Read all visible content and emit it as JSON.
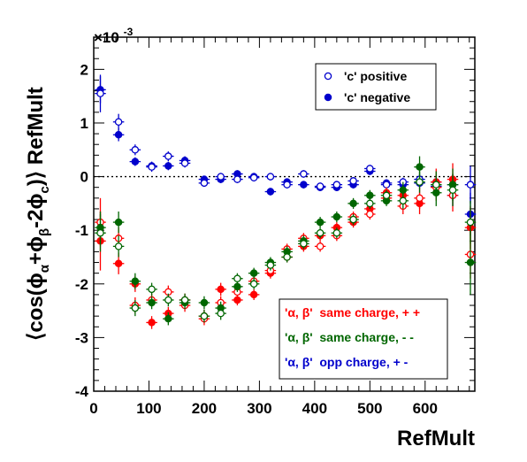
{
  "chart_data": {
    "type": "scatter",
    "xlabel": "RefMult",
    "ylabel": "⟨cos(ϕα+ϕβ-2ϕc)⟩ RefMult",
    "ylabel_parts": {
      "open": "⟨cos(ϕ",
      "sub_alpha": "α",
      "plus": "+ϕ",
      "sub_beta": "β",
      "minus": "-2ϕ",
      "sub_c": "c",
      "close": ")⟩ RefMult"
    },
    "y_multiplier": "×10",
    "y_multiplier_exp": "-3",
    "xlim": [
      0,
      690
    ],
    "ylim": [
      -4,
      2.6
    ],
    "x_ticks": [
      0,
      100,
      200,
      300,
      400,
      500,
      600
    ],
    "y_ticks": [
      -4,
      -3,
      -2,
      -1,
      0,
      1,
      2
    ],
    "reference_line": 0,
    "grid": false,
    "legends": [
      {
        "placement": "top-right",
        "entries": [
          {
            "label": "'c' positive",
            "color": "#0000cc",
            "marker": "open"
          },
          {
            "label": "'c' negative",
            "color": "#0000cc",
            "marker": "filled"
          }
        ]
      },
      {
        "placement": "bottom-right",
        "entries": [
          {
            "label": "'α, β'  same charge, + +",
            "color": "#ff0000"
          },
          {
            "label": "'α, β'  same charge, - -",
            "color": "#006600"
          },
          {
            "label": "'α, β'  opp charge, + -",
            "color": "#0000cc"
          }
        ]
      }
    ],
    "series": [
      {
        "color": "#0000cc",
        "marker": "filled",
        "xerr": 10,
        "points": [
          [
            12,
            1.62,
            0.25
          ],
          [
            45,
            0.78,
            0.12
          ],
          [
            75,
            0.28,
            0.08
          ],
          [
            105,
            0.2,
            0.08
          ],
          [
            135,
            0.2,
            0.08
          ],
          [
            165,
            0.3,
            0.08
          ],
          [
            200,
            -0.05,
            0.07
          ],
          [
            230,
            -0.05,
            0.07
          ],
          [
            260,
            0.05,
            0.07
          ],
          [
            290,
            0.0,
            0.07
          ],
          [
            320,
            -0.28,
            0.07
          ],
          [
            350,
            -0.1,
            0.07
          ],
          [
            380,
            -0.15,
            0.07
          ],
          [
            410,
            -0.2,
            0.07
          ],
          [
            440,
            -0.2,
            0.07
          ],
          [
            470,
            -0.15,
            0.07
          ],
          [
            500,
            0.1,
            0.07
          ],
          [
            530,
            -0.12,
            0.07
          ],
          [
            560,
            -0.15,
            0.08
          ],
          [
            590,
            -0.12,
            0.1
          ],
          [
            620,
            -0.1,
            0.12
          ],
          [
            650,
            -0.15,
            0.2
          ],
          [
            682,
            -0.7,
            0.4
          ]
        ]
      },
      {
        "color": "#0000cc",
        "marker": "open",
        "xerr": 10,
        "points": [
          [
            12,
            1.55,
            0.35
          ],
          [
            45,
            1.02,
            0.15
          ],
          [
            75,
            0.5,
            0.1
          ],
          [
            105,
            0.18,
            0.09
          ],
          [
            135,
            0.38,
            0.09
          ],
          [
            165,
            0.25,
            0.08
          ],
          [
            200,
            -0.12,
            0.07
          ],
          [
            230,
            0.0,
            0.07
          ],
          [
            260,
            -0.05,
            0.07
          ],
          [
            290,
            -0.02,
            0.07
          ],
          [
            320,
            0.0,
            0.07
          ],
          [
            350,
            -0.15,
            0.07
          ],
          [
            380,
            0.05,
            0.07
          ],
          [
            410,
            -0.18,
            0.07
          ],
          [
            440,
            -0.15,
            0.07
          ],
          [
            470,
            -0.08,
            0.07
          ],
          [
            500,
            0.15,
            0.07
          ],
          [
            530,
            -0.15,
            0.07
          ],
          [
            560,
            -0.1,
            0.08
          ],
          [
            590,
            -0.05,
            0.1
          ],
          [
            620,
            -0.18,
            0.12
          ],
          [
            650,
            -0.35,
            0.2
          ],
          [
            682,
            -0.15,
            0.35
          ]
        ]
      },
      {
        "color": "#ff0000",
        "marker": "filled",
        "xerr": 10,
        "points": [
          [
            12,
            -1.2,
            0.55
          ],
          [
            45,
            -1.62,
            0.2
          ],
          [
            75,
            -2.0,
            0.15
          ],
          [
            105,
            -2.72,
            0.12
          ],
          [
            135,
            -2.55,
            0.12
          ],
          [
            165,
            -2.3,
            0.12
          ],
          [
            200,
            -2.6,
            0.12
          ],
          [
            230,
            -2.1,
            0.12
          ],
          [
            260,
            -2.3,
            0.1
          ],
          [
            290,
            -2.2,
            0.1
          ],
          [
            320,
            -1.8,
            0.1
          ],
          [
            350,
            -1.5,
            0.1
          ],
          [
            380,
            -1.3,
            0.1
          ],
          [
            410,
            -1.1,
            0.1
          ],
          [
            440,
            -0.95,
            0.1
          ],
          [
            470,
            -0.85,
            0.1
          ],
          [
            500,
            -0.6,
            0.1
          ],
          [
            530,
            -0.3,
            0.1
          ],
          [
            560,
            -0.35,
            0.15
          ],
          [
            590,
            -0.5,
            0.2
          ],
          [
            620,
            -0.1,
            0.25
          ],
          [
            650,
            -0.05,
            0.3
          ],
          [
            682,
            -0.95,
            0.4
          ]
        ]
      },
      {
        "color": "#ff0000",
        "marker": "open",
        "xerr": 10,
        "points": [
          [
            12,
            -0.85,
            0.45
          ],
          [
            45,
            -1.15,
            0.2
          ],
          [
            75,
            -2.4,
            0.15
          ],
          [
            105,
            -2.3,
            0.12
          ],
          [
            135,
            -2.15,
            0.12
          ],
          [
            165,
            -2.4,
            0.12
          ],
          [
            200,
            -2.65,
            0.12
          ],
          [
            230,
            -2.35,
            0.12
          ],
          [
            260,
            -2.15,
            0.1
          ],
          [
            290,
            -1.95,
            0.1
          ],
          [
            320,
            -1.75,
            0.1
          ],
          [
            350,
            -1.35,
            0.1
          ],
          [
            380,
            -1.15,
            0.1
          ],
          [
            410,
            -1.3,
            0.1
          ],
          [
            440,
            -1.1,
            0.1
          ],
          [
            470,
            -0.75,
            0.1
          ],
          [
            500,
            -0.7,
            0.1
          ],
          [
            530,
            -0.4,
            0.1
          ],
          [
            560,
            -0.55,
            0.15
          ],
          [
            590,
            -0.4,
            0.2
          ],
          [
            620,
            -0.2,
            0.25
          ],
          [
            650,
            -0.35,
            0.3
          ],
          [
            682,
            -1.45,
            0.45
          ]
        ]
      },
      {
        "color": "#006600",
        "marker": "filled",
        "xerr": 10,
        "points": [
          [
            12,
            -0.95,
            0.3
          ],
          [
            45,
            -0.85,
            0.2
          ],
          [
            75,
            -1.95,
            0.15
          ],
          [
            105,
            -2.35,
            0.12
          ],
          [
            135,
            -2.65,
            0.12
          ],
          [
            165,
            -2.35,
            0.12
          ],
          [
            200,
            -2.35,
            0.12
          ],
          [
            230,
            -2.45,
            0.12
          ],
          [
            260,
            -2.05,
            0.1
          ],
          [
            290,
            -1.8,
            0.1
          ],
          [
            320,
            -1.6,
            0.1
          ],
          [
            350,
            -1.4,
            0.1
          ],
          [
            380,
            -1.2,
            0.1
          ],
          [
            410,
            -0.85,
            0.1
          ],
          [
            440,
            -0.75,
            0.1
          ],
          [
            470,
            -0.5,
            0.1
          ],
          [
            500,
            -0.35,
            0.1
          ],
          [
            530,
            -0.45,
            0.1
          ],
          [
            560,
            -0.25,
            0.15
          ],
          [
            590,
            0.18,
            0.2
          ],
          [
            620,
            -0.3,
            0.25
          ],
          [
            650,
            -0.15,
            0.3
          ],
          [
            682,
            -1.6,
            0.6
          ]
        ]
      },
      {
        "color": "#006600",
        "marker": "open",
        "xerr": 10,
        "points": [
          [
            12,
            -1.05,
            0.35
          ],
          [
            45,
            -1.3,
            0.2
          ],
          [
            75,
            -2.45,
            0.15
          ],
          [
            105,
            -2.1,
            0.12
          ],
          [
            135,
            -2.3,
            0.12
          ],
          [
            165,
            -2.3,
            0.12
          ],
          [
            200,
            -2.6,
            0.12
          ],
          [
            230,
            -2.55,
            0.12
          ],
          [
            260,
            -1.9,
            0.1
          ],
          [
            290,
            -2.0,
            0.1
          ],
          [
            320,
            -1.65,
            0.1
          ],
          [
            350,
            -1.5,
            0.1
          ],
          [
            380,
            -1.25,
            0.1
          ],
          [
            410,
            -1.05,
            0.1
          ],
          [
            440,
            -1.05,
            0.1
          ],
          [
            470,
            -0.8,
            0.1
          ],
          [
            500,
            -0.5,
            0.1
          ],
          [
            530,
            -0.35,
            0.1
          ],
          [
            560,
            -0.45,
            0.15
          ],
          [
            590,
            -0.1,
            0.2
          ],
          [
            620,
            -0.15,
            0.25
          ],
          [
            650,
            -0.25,
            0.3
          ],
          [
            682,
            -0.85,
            0.4
          ]
        ]
      }
    ]
  }
}
